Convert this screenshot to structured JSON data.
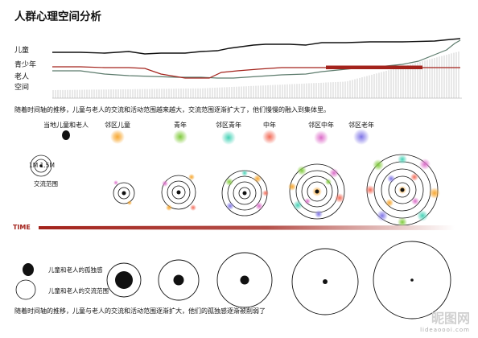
{
  "title": "人群心理空间分析",
  "rows": [
    "儿童",
    "青少年",
    "老人",
    "空间"
  ],
  "caption_top": "随着时间轴的推移，儿童与老人的交流和活动范围越来越大，交流范围逐渐扩大了，他们慢慢的融入到集体里。",
  "legend": [
    {
      "label": "当地儿童和老人",
      "color": "#111111"
    },
    {
      "label": "邻区儿童",
      "color": "#f7a833"
    },
    {
      "label": "青年",
      "color": "#8fd14f"
    },
    {
      "label": "邻区青年",
      "color": "#5fd8c0"
    },
    {
      "label": "中年",
      "color": "#f47a6a"
    },
    {
      "label": "邻区中年",
      "color": "#e27fd0"
    },
    {
      "label": "邻区老年",
      "color": "#8f86ea"
    }
  ],
  "scale_label": "1M 1.5M",
  "exchange_label": "交流范围",
  "time_label": "TIME",
  "bottom_legend": [
    "儿童和老人的孤独感",
    "儿童和老人的交流范围"
  ],
  "caption_bottom": "随着时间轴的推移，儿童与老人的交流和活动范围逐渐扩大，他们的孤独感逐渐被削弱了",
  "watermark": [
    "昵图网",
    "lideaoooi.com"
  ],
  "colors": {
    "accent_red": "#a3231c",
    "child_line": "#111111",
    "teen_line": "#5c7b6c"
  }
}
